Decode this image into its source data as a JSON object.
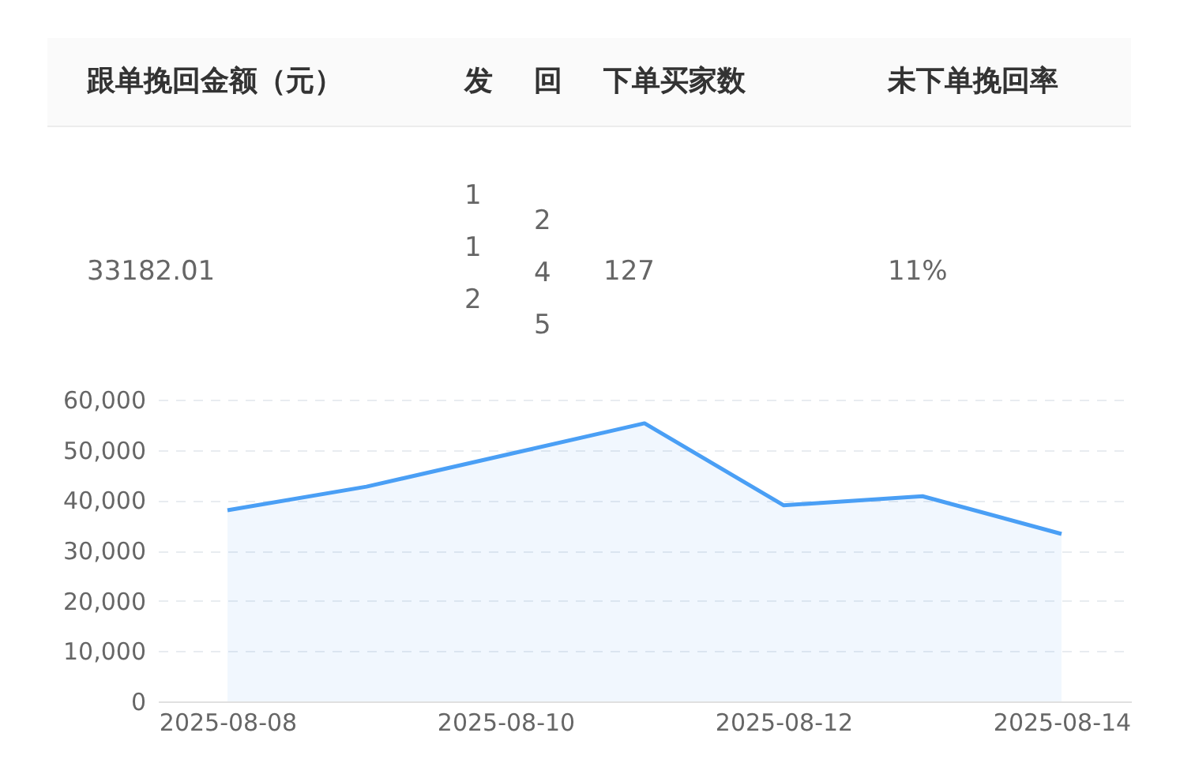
{
  "chart_data": [
    {
      "type": "other",
      "categories": [
        "跟单挽回金额（元）",
        "发",
        "回",
        "下单买家数",
        "未下单挽回率"
      ],
      "value_labels": [
        "33182.01",
        "112",
        "245",
        "127",
        "11%"
      ]
    },
    {
      "type": "area",
      "categories": [
        "2025-08-08",
        null,
        "2025-08-10",
        null,
        "2025-08-12",
        null,
        "2025-08-14"
      ],
      "series": [
        {
          "color": "#4a9ff5",
          "values": [
            38000,
            42700,
            49000,
            55300,
            39000,
            40800,
            33300
          ]
        }
      ],
      "ylim": [
        0,
        60000
      ],
      "yticks": [
        {
          "value": 0,
          "label": "0"
        },
        {
          "value": 10000,
          "label": "10,000"
        },
        {
          "value": 20000,
          "label": "20,000"
        },
        {
          "value": 30000,
          "label": "30,000"
        },
        {
          "value": 40000,
          "label": "40,000"
        },
        {
          "value": 50000,
          "label": "50,000"
        },
        {
          "value": 60000,
          "label": "60,000"
        }
      ],
      "grid": "y",
      "marker": "none",
      "line_style": "solid"
    }
  ]
}
